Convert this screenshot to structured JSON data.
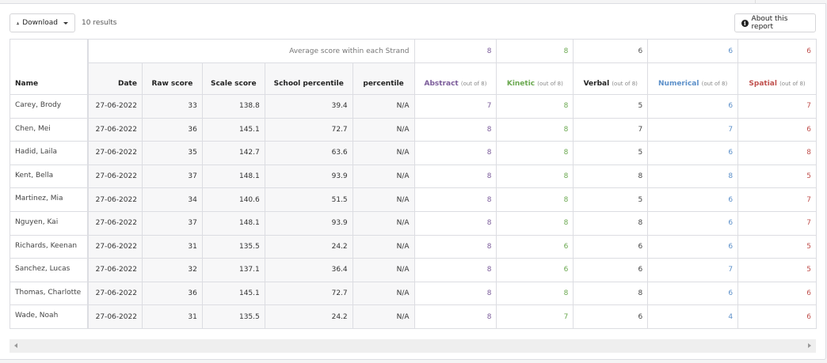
{
  "toolbar": {
    "download_label": "Download",
    "results_count": "10 results",
    "about_label": "About this report"
  },
  "strand_row": {
    "label": "Average score within each Strand",
    "averages": {
      "abstract": "8",
      "kinetic": "8",
      "verbal": "6",
      "numerical": "6",
      "spatial": "6"
    }
  },
  "columns": {
    "name": "Name",
    "date": "Date",
    "raw_score": "Raw score",
    "scale_score": "Scale score",
    "school_percentile": "School percentile",
    "percentile": "percentile",
    "abstract": "Abstract",
    "kinetic": "Kinetic",
    "verbal": "Verbal",
    "numerical": "Numerical",
    "spatial": "Spatial",
    "out_of": "(out of 8)"
  },
  "colors": {
    "abstract": "#7b5c9a",
    "kinetic": "#6aa84f",
    "verbal": "#222222",
    "numerical": "#5b8fc9",
    "spatial": "#c0504d",
    "border": "#dcdde2"
  },
  "rows": [
    {
      "name": "Carey, Brody",
      "date": "27-06-2022",
      "raw": "33",
      "scale": "138.8",
      "school_pct": "39.4",
      "pct": "N/A",
      "abstract": "7",
      "kinetic": "8",
      "verbal": "5",
      "numerical": "6",
      "spatial": "7"
    },
    {
      "name": "Chen, Mei",
      "date": "27-06-2022",
      "raw": "36",
      "scale": "145.1",
      "school_pct": "72.7",
      "pct": "N/A",
      "abstract": "8",
      "kinetic": "8",
      "verbal": "7",
      "numerical": "7",
      "spatial": "6"
    },
    {
      "name": "Hadid, Laila",
      "date": "27-06-2022",
      "raw": "35",
      "scale": "142.7",
      "school_pct": "63.6",
      "pct": "N/A",
      "abstract": "8",
      "kinetic": "8",
      "verbal": "5",
      "numerical": "6",
      "spatial": "8"
    },
    {
      "name": "Kent, Bella",
      "date": "27-06-2022",
      "raw": "37",
      "scale": "148.1",
      "school_pct": "93.9",
      "pct": "N/A",
      "abstract": "8",
      "kinetic": "8",
      "verbal": "8",
      "numerical": "8",
      "spatial": "5"
    },
    {
      "name": "Martinez, Mia",
      "date": "27-06-2022",
      "raw": "34",
      "scale": "140.6",
      "school_pct": "51.5",
      "pct": "N/A",
      "abstract": "8",
      "kinetic": "8",
      "verbal": "5",
      "numerical": "6",
      "spatial": "7"
    },
    {
      "name": "Nguyen, Kai",
      "date": "27-06-2022",
      "raw": "37",
      "scale": "148.1",
      "school_pct": "93.9",
      "pct": "N/A",
      "abstract": "8",
      "kinetic": "8",
      "verbal": "8",
      "numerical": "6",
      "spatial": "7"
    },
    {
      "name": "Richards, Keenan",
      "date": "27-06-2022",
      "raw": "31",
      "scale": "135.5",
      "school_pct": "24.2",
      "pct": "N/A",
      "abstract": "8",
      "kinetic": "6",
      "verbal": "6",
      "numerical": "6",
      "spatial": "5"
    },
    {
      "name": "Sanchez, Lucas",
      "date": "27-06-2022",
      "raw": "32",
      "scale": "137.1",
      "school_pct": "36.4",
      "pct": "N/A",
      "abstract": "8",
      "kinetic": "6",
      "verbal": "6",
      "numerical": "7",
      "spatial": "5"
    },
    {
      "name": "Thomas, Charlotte",
      "date": "27-06-2022",
      "raw": "36",
      "scale": "145.1",
      "school_pct": "72.7",
      "pct": "N/A",
      "abstract": "8",
      "kinetic": "8",
      "verbal": "8",
      "numerical": "6",
      "spatial": "6"
    },
    {
      "name": "Wade, Noah",
      "date": "27-06-2022",
      "raw": "31",
      "scale": "135.5",
      "school_pct": "24.2",
      "pct": "N/A",
      "abstract": "8",
      "kinetic": "7",
      "verbal": "6",
      "numerical": "4",
      "spatial": "6"
    }
  ]
}
